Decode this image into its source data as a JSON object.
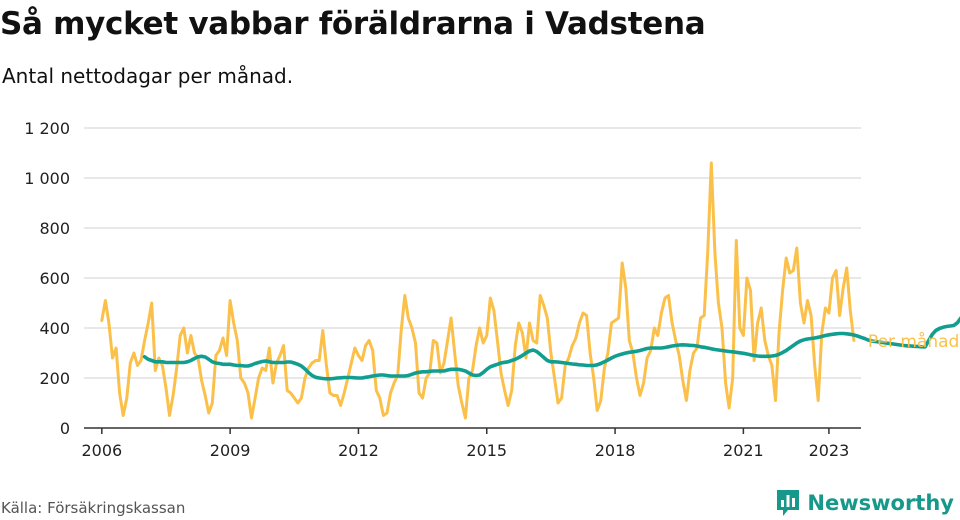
{
  "header": {
    "title": "Så mycket vabbar föräldrarna i Vadstena",
    "subtitle": "Antal nettodagar per månad."
  },
  "footer": {
    "source": "Källa: Försäkringskassan",
    "brand": "Newsworthy",
    "brand_icon": "bar-chart-icon",
    "brand_color": "#16998a"
  },
  "colors": {
    "monthly": "#fbc04a",
    "trend": "#119e90",
    "grid": "#d9d9d9",
    "axis": "#333333"
  },
  "chart_data": {
    "type": "line",
    "title": "Så mycket vabbar föräldrarna i Vadstena",
    "subtitle": "Antal nettodagar per månad.",
    "xlabel": "",
    "ylabel": "",
    "y_ticks": [
      0,
      200,
      400,
      600,
      800,
      1000,
      1200
    ],
    "y_tick_labels": [
      "0",
      "200",
      "400",
      "600",
      "800",
      "1 000",
      "1 200"
    ],
    "ylim": [
      0,
      1200
    ],
    "x_ticks": [
      2006,
      2009,
      2012,
      2015,
      2018,
      2021,
      2023
    ],
    "x_tick_labels": [
      "2006",
      "2009",
      "2012",
      "2015",
      "2018",
      "2021",
      "2023"
    ],
    "xlim": [
      "2005-08",
      "2023-10"
    ],
    "grid": true,
    "legend": "direct labels at line ends (right)",
    "series": [
      {
        "name": "Per månad",
        "color": "#fbc04a",
        "start": "2006-01",
        "frequency": "monthly",
        "values": [
          430,
          510,
          420,
          280,
          320,
          140,
          50,
          120,
          260,
          300,
          250,
          270,
          350,
          420,
          500,
          230,
          280,
          250,
          160,
          50,
          130,
          240,
          370,
          400,
          300,
          370,
          300,
          280,
          190,
          130,
          60,
          100,
          290,
          310,
          360,
          290,
          510,
          420,
          350,
          200,
          180,
          140,
          40,
          120,
          200,
          240,
          230,
          320,
          180,
          260,
          290,
          330,
          150,
          140,
          120,
          100,
          120,
          200,
          240,
          260,
          270,
          270,
          390,
          250,
          140,
          130,
          130,
          90,
          140,
          200,
          260,
          320,
          290,
          270,
          330,
          350,
          310,
          150,
          120,
          50,
          60,
          140,
          180,
          210,
          390,
          530,
          440,
          400,
          340,
          140,
          120,
          200,
          220,
          350,
          340,
          220,
          260,
          350,
          440,
          300,
          170,
          100,
          40,
          200,
          230,
          330,
          400,
          340,
          370,
          520,
          470,
          350,
          220,
          150,
          90,
          150,
          330,
          420,
          380,
          280,
          420,
          350,
          340,
          530,
          490,
          440,
          300,
          200,
          100,
          120,
          250,
          280,
          330,
          360,
          420,
          460,
          450,
          300,
          200,
          70,
          110,
          240,
          300,
          420,
          430,
          440,
          660,
          560,
          350,
          300,
          200,
          130,
          180,
          280,
          310,
          400,
          370,
          460,
          520,
          530,
          420,
          350,
          290,
          190,
          110,
          230,
          300,
          320,
          440,
          450,
          700,
          1060,
          700,
          500,
          400,
          180,
          80,
          200,
          750,
          400,
          370,
          600,
          550,
          270,
          420,
          480,
          350,
          290,
          250,
          110,
          380,
          550,
          680,
          620,
          630,
          720,
          500,
          420,
          510,
          450,
          250,
          110,
          380,
          480,
          460,
          600,
          630,
          450,
          560,
          640,
          470,
          350
        ]
      },
      {
        "name": "Trend",
        "color": "#119e90",
        "start": "2007-01",
        "frequency": "monthly",
        "values": [
          285,
          275,
          270,
          265,
          265,
          265,
          262,
          262,
          262,
          262,
          262,
          262,
          265,
          270,
          278,
          285,
          287,
          284,
          275,
          265,
          260,
          258,
          255,
          255,
          255,
          252,
          250,
          250,
          248,
          248,
          252,
          258,
          262,
          266,
          268,
          265,
          262,
          262,
          262,
          262,
          264,
          264,
          260,
          255,
          248,
          236,
          222,
          210,
          203,
          200,
          198,
          197,
          197,
          198,
          200,
          201,
          202,
          202,
          202,
          201,
          200,
          200,
          203,
          205,
          208,
          210,
          212,
          212,
          210,
          208,
          208,
          208,
          208,
          208,
          210,
          215,
          220,
          223,
          225,
          225,
          227,
          228,
          228,
          228,
          228,
          232,
          235,
          235,
          235,
          232,
          228,
          220,
          212,
          210,
          212,
          222,
          235,
          245,
          250,
          255,
          260,
          263,
          265,
          270,
          275,
          282,
          290,
          300,
          308,
          312,
          306,
          295,
          282,
          270,
          265,
          265,
          264,
          262,
          260,
          258,
          256,
          255,
          253,
          252,
          250,
          250,
          250,
          253,
          258,
          265,
          272,
          280,
          287,
          292,
          296,
          300,
          303,
          305,
          307,
          310,
          314,
          318,
          320,
          320,
          320,
          320,
          322,
          325,
          328,
          330,
          332,
          333,
          332,
          331,
          330,
          328,
          325,
          323,
          320,
          317,
          314,
          312,
          310,
          308,
          306,
          305,
          303,
          301,
          299,
          296,
          293,
          290,
          288,
          287,
          287,
          287,
          288,
          290,
          295,
          302,
          310,
          320,
          330,
          340,
          348,
          353,
          356,
          358,
          360,
          363,
          366,
          370,
          373,
          375,
          377,
          378,
          378,
          377,
          375,
          372,
          368,
          363,
          358,
          352,
          348,
          346,
          344,
          342,
          340,
          338,
          336,
          334,
          332,
          330,
          329,
          328,
          327,
          326,
          325,
          325,
          350,
          375,
          390,
          398,
          403,
          406,
          408,
          410,
          420,
          440,
          450,
          455,
          460,
          465,
          467,
          465,
          450,
          410,
          385,
          378,
          375,
          373,
          372,
          374,
          377,
          382,
          380,
          362,
          385,
          395,
          400,
          420,
          440,
          455,
          462,
          470,
          478,
          482,
          486,
          488,
          488,
          485,
          487,
          476,
          462,
          450,
          445,
          430,
          435,
          440,
          438,
          428
        ]
      }
    ]
  }
}
